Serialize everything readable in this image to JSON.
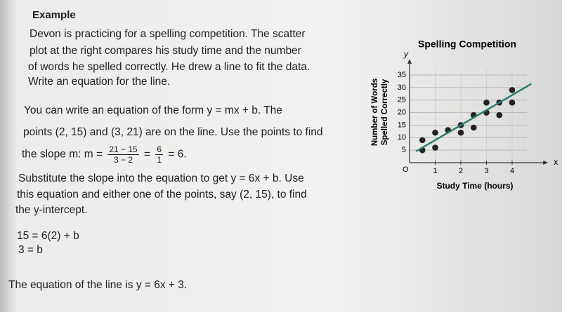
{
  "example": {
    "heading": "Example",
    "intro": [
      "Devon is practicing for a spelling competition. The scatter",
      "plot at the right compares his study time and the number",
      "of words he spelled correctly. He drew a line to fit the data.",
      "Write an equation for the line."
    ],
    "step1": "You can write an equation of the form y = mx + b. The",
    "step2": "points (2, 15) and (3, 21) are on the line. Use the points to find",
    "slope": {
      "prefix": "the slope m: m =",
      "fraction1": {
        "num": "21 − 15",
        "den": "3 − 2"
      },
      "equals": "=",
      "fraction2": {
        "num": "6",
        "den": "1"
      },
      "suffix": "= 6."
    },
    "substitute": [
      "Substitute the slope into the equation to get y = 6x + b. Use",
      "this equation and either one of the points, say (2, 15), to find",
      "the y-intercept."
    ],
    "work": [
      "15 = 6(2) + b",
      "3 = b"
    ],
    "conclusion": "The equation of the line is y = 6x + 3."
  },
  "chart": {
    "type": "scatter",
    "title": "Spelling Competition",
    "x_label": "Study Time (hours)",
    "y_label": [
      "Number of Words",
      "Spelled Correctly"
    ],
    "x_axis_letter": "x",
    "y_axis_letter": "y",
    "origin_label": "O",
    "x": [
      0.5,
      0.5,
      1,
      1,
      1.5,
      2,
      2,
      2.5,
      2.5,
      3,
      3,
      3.5,
      3.5,
      4,
      4
    ],
    "y": [
      5,
      9,
      6,
      12,
      13,
      12,
      15,
      19,
      14,
      20,
      24,
      24,
      19,
      29,
      24
    ],
    "color": "#222222",
    "trend_line": {
      "x": [
        0.25,
        4.75
      ],
      "y": [
        4.5,
        31.5
      ],
      "color": "#2e7d73"
    },
    "xlim": [
      0,
      4.8
    ],
    "ylim": [
      0,
      37
    ],
    "xticks": [
      1,
      2,
      3,
      4
    ],
    "yticks": [
      5,
      10,
      15,
      20,
      25,
      30,
      35
    ],
    "grid": true
  }
}
